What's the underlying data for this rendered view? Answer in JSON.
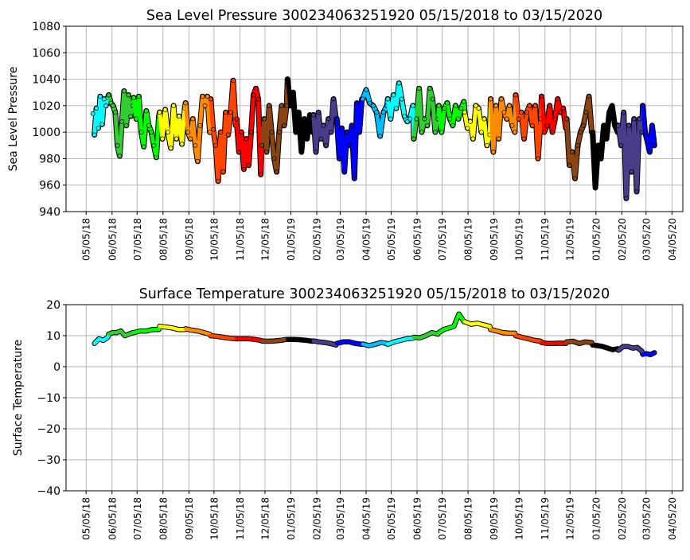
{
  "chart_data": [
    {
      "type": "scatter",
      "title": "Sea Level Pressure 300234063251920  05/15/2018 to 03/15/2020",
      "xlabel": "",
      "ylabel": "Sea Level Pressure",
      "ylim": [
        940,
        1080
      ],
      "yticks": [
        940,
        960,
        980,
        1000,
        1020,
        1040,
        1060,
        1080
      ],
      "grid": true,
      "isolated_point": {
        "date": "05/13/2018",
        "value": 1014,
        "color": "#00ffff"
      },
      "series": [
        {
          "month": "05/2018",
          "start": "05/15/2018",
          "end": "05/31/2018",
          "color": "#00ffff",
          "values": [
            998,
            1018,
            1003,
            1027,
            1006,
            1025,
            1020,
            1026
          ]
        },
        {
          "month": "06/2018",
          "start": "06/01/2018",
          "end": "06/30/2018",
          "color": "#32cd32",
          "values": [
            1028,
            1022,
            1020,
            1015,
            990,
            982,
            1008,
            1031,
            1005,
            1028,
            1012,
            1020
          ]
        },
        {
          "month": "07/2018",
          "start": "07/01/2018",
          "end": "07/31/2018",
          "color": "#00ff00",
          "values": [
            1026,
            1010,
            1027,
            1000,
            989,
            1016,
            1005,
            1000,
            990,
            981,
            1012
          ]
        },
        {
          "month": "08/2018",
          "start": "08/01/2018",
          "end": "08/31/2018",
          "color": "#ffff00",
          "values": [
            1015,
            995,
            1017,
            1000,
            988,
            1020,
            995,
            1012,
            991,
            1018
          ]
        },
        {
          "month": "09/2018",
          "start": "09/01/2018",
          "end": "09/30/2018",
          "color": "#ff8c00",
          "values": [
            1022,
            1000,
            995,
            1010,
            990,
            978,
            1005,
            1027,
            1020,
            1027,
            1000
          ]
        },
        {
          "month": "10/2018",
          "start": "10/01/2018",
          "end": "10/31/2018",
          "color": "#ff4500",
          "values": [
            1025,
            1002,
            990,
            963,
            1000,
            970,
            1015,
            998,
            1015,
            1039,
            1005
          ]
        },
        {
          "month": "11/2018",
          "start": "11/01/2018",
          "end": "11/30/2018",
          "color": "#ff0000",
          "values": [
            1010,
            985,
            1000,
            972,
            995,
            975,
            1000,
            1028,
            1033,
            1025,
            968
          ]
        },
        {
          "month": "12/2018",
          "start": "12/01/2018",
          "end": "12/31/2018",
          "color": "#8b4513",
          "values": [
            990,
            1010,
            985,
            1020,
            1000,
            980,
            970,
            1000,
            1020,
            1005,
            1020
          ]
        },
        {
          "month": "01/2019",
          "start": "01/01/2019",
          "end": "01/31/2019",
          "color": "#000000",
          "values": [
            1040,
            1020,
            1030,
            1000,
            1015,
            985,
            1010,
            995,
            1013,
            1000
          ]
        },
        {
          "month": "02/2019",
          "start": "02/01/2019",
          "end": "02/28/2019",
          "color": "#483d8b",
          "values": [
            1013,
            985,
            1015,
            995,
            1005,
            990,
            1010,
            1000,
            1025,
            1010
          ]
        },
        {
          "month": "03/2019",
          "start": "03/01/2019",
          "end": "03/31/2019",
          "color": "#0000ff",
          "values": [
            1010,
            980,
            1003,
            970,
            1000,
            990,
            1005,
            965,
            1022,
            1000,
            1025
          ]
        },
        {
          "month": "04/2019",
          "start": "04/01/2019",
          "end": "04/30/2019",
          "color": "#00bfff",
          "values": [
            1025,
            1032,
            1022,
            1020,
            1015,
            997,
            1015,
            1020
          ]
        },
        {
          "month": "05/2019",
          "start": "05/01/2019",
          "end": "05/31/2019",
          "color": "#00ffff",
          "values": [
            1025,
            1010,
            1028,
            1018,
            1037,
            1025,
            1012,
            1008,
            1010,
            1020
          ]
        },
        {
          "month": "06/2019",
          "start": "06/01/2019",
          "end": "06/30/2019",
          "color": "#32cd32",
          "values": [
            995,
            1010,
            1033,
            1000,
            1010,
            1005,
            1033,
            1025,
            1000,
            1010
          ]
        },
        {
          "month": "07/2019",
          "start": "07/01/2019",
          "end": "07/31/2019",
          "color": "#00ff00",
          "values": [
            1020,
            1000,
            1018,
            1022,
            1010,
            1005,
            1020,
            1010,
            1018,
            1023
          ]
        },
        {
          "month": "08/2019",
          "start": "08/01/2019",
          "end": "08/31/2019",
          "color": "#ffff00",
          "values": [
            1015,
            1003,
            1008,
            995,
            1020,
            1018,
            1000,
            1010,
            990,
            998
          ]
        },
        {
          "month": "09/2019",
          "start": "09/01/2019",
          "end": "09/30/2019",
          "color": "#ff8c00",
          "values": [
            1025,
            985,
            1020,
            995,
            1025,
            1015,
            1010,
            1020,
            1005,
            1000
          ]
        },
        {
          "month": "10/2019",
          "start": "10/01/2019",
          "end": "10/31/2019",
          "color": "#ff4500",
          "values": [
            1028,
            1010,
            1015,
            995,
            1015,
            1020,
            1005,
            1020,
            980,
            1010
          ]
        },
        {
          "month": "11/2019",
          "start": "11/01/2019",
          "end": "11/30/2019",
          "color": "#ff0000",
          "values": [
            1027,
            1000,
            1005,
            1020,
            1000,
            1010,
            1025,
            1015,
            1018,
            1003
          ]
        },
        {
          "month": "12/2019",
          "start": "12/01/2019",
          "end": "12/31/2019",
          "color": "#8b4513",
          "values": [
            1010,
            975,
            985,
            965,
            990,
            1000,
            1005,
            1015,
            1027,
            1000
          ]
        },
        {
          "month": "01/2020",
          "start": "01/01/2020",
          "end": "01/31/2020",
          "color": "#000000",
          "values": [
            1000,
            958,
            990,
            980,
            1005,
            995,
            1015,
            1020,
            1005,
            1000
          ]
        },
        {
          "month": "02/2020",
          "start": "02/01/2020",
          "end": "02/29/2020",
          "color": "#483d8b",
          "values": [
            1005,
            990,
            1015,
            950,
            1005,
            970,
            1010,
            955,
            1010,
            1000
          ]
        },
        {
          "month": "03/2020",
          "start": "03/01/2020",
          "end": "03/15/2020",
          "color": "#0000ff",
          "values": [
            1020,
            1000,
            993,
            985,
            1005,
            990
          ]
        }
      ]
    },
    {
      "type": "line",
      "title": "Surface Temperature 300234063251920  05/15/2018 to 03/15/2020",
      "xlabel": "",
      "ylabel": "Surface Temperature",
      "ylim": [
        -40,
        20
      ],
      "yticks": [
        -40,
        -30,
        -20,
        -10,
        0,
        10,
        20
      ],
      "grid": true,
      "series": [
        {
          "month": "05/2018",
          "start": "05/15/2018",
          "end": "05/31/2018",
          "color": "#00ffff",
          "values": [
            7.5,
            9,
            8.5,
            9.5
          ]
        },
        {
          "month": "06/2018",
          "start": "06/01/2018",
          "end": "06/30/2018",
          "color": "#32cd32",
          "values": [
            10.5,
            11,
            11,
            11.5,
            10,
            10.5,
            11
          ]
        },
        {
          "month": "07/2018",
          "start": "07/01/2018",
          "end": "07/31/2018",
          "color": "#00ff00",
          "values": [
            11,
            11.5,
            11.5,
            12,
            12
          ]
        },
        {
          "month": "08/2018",
          "start": "08/01/2018",
          "end": "08/31/2018",
          "color": "#ffff00",
          "values": [
            13,
            12.8,
            12.5,
            12,
            12
          ]
        },
        {
          "month": "09/2018",
          "start": "09/01/2018",
          "end": "09/30/2018",
          "color": "#ff8c00",
          "values": [
            12.2,
            11.8,
            11.5,
            11,
            10.5
          ]
        },
        {
          "month": "10/2018",
          "start": "10/01/2018",
          "end": "10/31/2018",
          "color": "#ff4500",
          "values": [
            10,
            9.8,
            9.5,
            9.2,
            9
          ]
        },
        {
          "month": "11/2018",
          "start": "11/01/2018",
          "end": "11/30/2018",
          "color": "#ff0000",
          "values": [
            9,
            9,
            9,
            8.8,
            8.5
          ]
        },
        {
          "month": "12/2018",
          "start": "12/01/2018",
          "end": "12/31/2018",
          "color": "#8b4513",
          "values": [
            8.3,
            8.2,
            8.3,
            8.5,
            8.8
          ]
        },
        {
          "month": "01/2019",
          "start": "01/01/2019",
          "end": "01/31/2019",
          "color": "#000000",
          "values": [
            8.8,
            8.8,
            8.7,
            8.5,
            8.2
          ]
        },
        {
          "month": "02/2019",
          "start": "02/01/2019",
          "end": "02/28/2019",
          "color": "#483d8b",
          "values": [
            8.3,
            8,
            7.8,
            7.5,
            7
          ]
        },
        {
          "month": "03/2019",
          "start": "03/01/2019",
          "end": "03/31/2019",
          "color": "#0000ff",
          "values": [
            7.5,
            8,
            8,
            7.5,
            7.2
          ]
        },
        {
          "month": "04/2019",
          "start": "04/01/2019",
          "end": "04/30/2019",
          "color": "#00bfff",
          "values": [
            7.3,
            6.8,
            7.2,
            7.8,
            7.5
          ]
        },
        {
          "month": "05/2019",
          "start": "05/01/2019",
          "end": "05/31/2019",
          "color": "#00ffff",
          "values": [
            7.2,
            8,
            8.5,
            9,
            9.2
          ]
        },
        {
          "month": "06/2019",
          "start": "06/01/2019",
          "end": "06/30/2019",
          "color": "#32cd32",
          "values": [
            9.5,
            9.3,
            10,
            11,
            10.5
          ]
        },
        {
          "month": "07/2019",
          "start": "07/01/2019",
          "end": "07/31/2019",
          "color": "#00ff00",
          "values": [
            11,
            12,
            12.5,
            13,
            17,
            14.5
          ]
        },
        {
          "month": "08/2019",
          "start": "08/01/2019",
          "end": "08/31/2019",
          "color": "#ffff00",
          "values": [
            14.5,
            13.7,
            14,
            13.5,
            13
          ]
        },
        {
          "month": "09/2019",
          "start": "09/01/2019",
          "end": "09/30/2019",
          "color": "#ff8c00",
          "values": [
            12,
            11.5,
            11,
            10.8,
            10.8
          ]
        },
        {
          "month": "10/2019",
          "start": "10/01/2019",
          "end": "10/31/2019",
          "color": "#ff4500",
          "values": [
            10,
            9.5,
            9,
            8.5,
            8.2
          ]
        },
        {
          "month": "11/2019",
          "start": "11/01/2019",
          "end": "11/30/2019",
          "color": "#ff0000",
          "values": [
            7.8,
            7.5,
            7.5,
            7.6,
            7.5
          ]
        },
        {
          "month": "12/2019",
          "start": "12/01/2019",
          "end": "12/31/2019",
          "color": "#8b4513",
          "values": [
            8,
            8.2,
            7.5,
            8,
            7.8
          ]
        },
        {
          "month": "01/2020",
          "start": "01/01/2020",
          "end": "01/31/2020",
          "color": "#000000",
          "values": [
            7,
            6.8,
            6.5,
            6,
            5.5,
            5.8
          ]
        },
        {
          "month": "02/2020",
          "start": "02/01/2020",
          "end": "02/29/2020",
          "color": "#483d8b",
          "values": [
            5.3,
            6.5,
            6.5,
            6,
            6.2,
            5
          ]
        },
        {
          "month": "03/2020",
          "start": "03/01/2020",
          "end": "03/15/2020",
          "color": "#0000ff",
          "values": [
            4,
            4.2,
            3.9,
            4.5
          ]
        }
      ]
    }
  ],
  "xticks": [
    "05/05/18",
    "06/05/18",
    "07/05/18",
    "08/05/18",
    "09/05/18",
    "10/05/18",
    "11/05/18",
    "12/05/18",
    "01/05/19",
    "02/05/19",
    "03/05/19",
    "04/05/19",
    "05/05/19",
    "06/05/19",
    "07/05/19",
    "08/05/19",
    "09/05/19",
    "10/05/19",
    "11/05/19",
    "12/05/19",
    "01/05/20",
    "02/05/20",
    "03/05/20",
    "04/05/20"
  ],
  "xlim": [
    "04/11/2018",
    "04/18/2020"
  ]
}
